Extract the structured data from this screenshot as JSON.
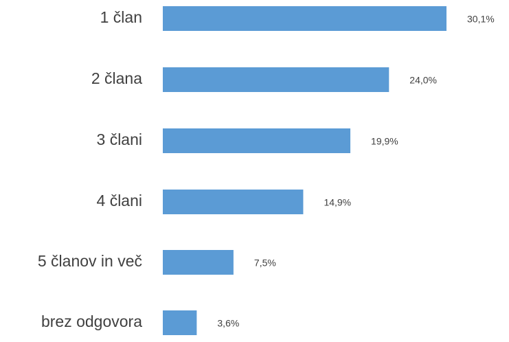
{
  "chart_data": {
    "type": "bar",
    "orientation": "horizontal",
    "categories": [
      "1 član",
      "2 člana",
      "3 člani",
      "4 člani",
      "5 članov in več",
      "brez odgovora"
    ],
    "values": [
      30.1,
      24.0,
      19.9,
      14.9,
      7.5,
      3.6
    ],
    "value_labels": [
      "30,1%",
      "24,0%",
      "19,9%",
      "14,9%",
      "7,5%",
      "3,6%"
    ],
    "color": "#5b9bd5"
  }
}
